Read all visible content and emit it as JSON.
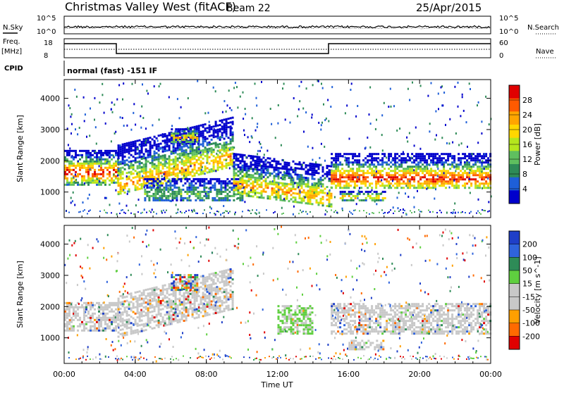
{
  "header": {
    "station": "Christmas Valley West (fitACF)",
    "beam": "Beam 22",
    "date": "25/Apr/2015"
  },
  "top_panels": {
    "nsky_label": "N.Sky",
    "nsky_ticks": [
      "10^5",
      "10^0"
    ],
    "nsearch_label": "N.Search",
    "nsearch_ticks": [
      "10^5",
      "10^0"
    ],
    "freq_label": "Freq.",
    "freq_unit": "[MHz]",
    "freq_ticks": [
      "18",
      "8"
    ],
    "nave_label": "Nave",
    "nave_ticks": [
      "60",
      "0"
    ],
    "cpid_label": "CPID",
    "cpid_text": "normal (fast) -151 IF"
  },
  "x_axis": {
    "label": "Time UT",
    "ticks": [
      "00:00",
      "04:00",
      "08:00",
      "12:00",
      "16:00",
      "20:00",
      "00:00"
    ],
    "range_hours": [
      0,
      24
    ]
  },
  "colors": {
    "frame": "#000000",
    "power_scale": [
      "#0000cc",
      "#1e5fd8",
      "#2e8b57",
      "#5fbf5f",
      "#b4e61e",
      "#ffd700",
      "#ffa500",
      "#ff5a00",
      "#e00000"
    ],
    "velocity_scale": [
      "#1f3fc8",
      "#2f63dc",
      "#2e8b57",
      "#5fcf3f",
      "#c8c8c8",
      "#c8c8c8",
      "#ff9f00",
      "#ff6a00",
      "#e00000"
    ]
  },
  "chart_data": [
    {
      "type": "heatmap",
      "title": "",
      "ylabel": "Slant Range [km]",
      "xlabel": "",
      "ylim": [
        180,
        4600
      ],
      "yticks": [
        1000,
        2000,
        3000,
        4000
      ],
      "colorbar": {
        "label": "Power [dB]",
        "ticks": [
          4,
          8,
          12,
          16,
          20,
          24,
          28
        ],
        "range": [
          0,
          32
        ]
      },
      "echo_bands": [
        {
          "t0": 0.0,
          "t1": 3.0,
          "r_lo": 1200,
          "r_hi": 2300,
          "peak": 1600,
          "level": "high"
        },
        {
          "t0": 3.0,
          "t1": 9.5,
          "r_lo": 900,
          "r_hi": 2500,
          "peak": 1200,
          "level": "mid"
        },
        {
          "t0": 4.5,
          "t1": 10.0,
          "r_lo": 700,
          "r_hi": 1400,
          "peak": 900,
          "level": "low"
        },
        {
          "t0": 6.0,
          "t1": 7.5,
          "r_lo": 2500,
          "r_hi": 3000,
          "peak": 2700,
          "level": "mid"
        },
        {
          "t0": 9.5,
          "t1": 15.0,
          "r_lo": 900,
          "r_hi": 2200,
          "peak": 1200,
          "level": "mid"
        },
        {
          "t0": 15.0,
          "t1": 24.0,
          "r_lo": 1100,
          "r_hi": 2200,
          "peak": 1400,
          "level": "high"
        },
        {
          "t0": 15.5,
          "t1": 18.0,
          "r_lo": 700,
          "r_hi": 1000,
          "peak": 800,
          "level": "mid"
        }
      ]
    },
    {
      "type": "heatmap",
      "title": "",
      "ylabel": "Slant Range [km]",
      "xlabel": "Time UT",
      "ylim": [
        180,
        4600
      ],
      "yticks": [
        1000,
        2000,
        3000,
        4000
      ],
      "colorbar": {
        "label": "Velocity [m s^-1]",
        "ticks": [
          200,
          100,
          50,
          15,
          -15,
          -50,
          -100,
          -200
        ],
        "range": [
          -250,
          250
        ]
      },
      "echo_bands": [
        {
          "t0": 0.0,
          "t1": 3.0,
          "r_lo": 1200,
          "r_hi": 2100,
          "level": "ground"
        },
        {
          "t0": 3.0,
          "t1": 9.5,
          "r_lo": 1000,
          "r_hi": 2300,
          "level": "ground"
        },
        {
          "t0": 6.0,
          "t1": 7.5,
          "r_lo": 2500,
          "r_hi": 3000,
          "level": "mixed"
        },
        {
          "t0": 12.0,
          "t1": 14.0,
          "r_lo": 1100,
          "r_hi": 2000,
          "level": "positive"
        },
        {
          "t0": 15.0,
          "t1": 24.0,
          "r_lo": 1100,
          "r_hi": 2100,
          "level": "ground"
        },
        {
          "t0": 16.0,
          "t1": 18.0,
          "r_lo": 600,
          "r_hi": 900,
          "level": "ground"
        }
      ]
    }
  ]
}
